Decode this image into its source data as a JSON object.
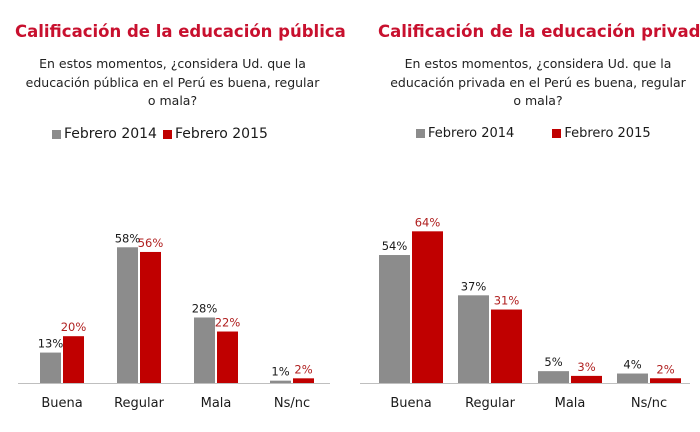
{
  "colors": {
    "gray": "#8c8c8c",
    "red": "#c00000",
    "title_red": "#c8102e",
    "label_red": "#b02020"
  },
  "chart_data": [
    {
      "type": "bar",
      "title": "Calificación de la educación pública",
      "subtitle": "En estos momentos, ¿considera Ud. que la educación pública en el Perú es buena, regular o mala?",
      "categories": [
        "Buena",
        "Regular",
        "Mala",
        "Ns/nc"
      ],
      "series": [
        {
          "name": "Febrero 2014",
          "values": [
            13,
            58,
            28,
            1
          ],
          "labels": [
            "13%",
            "58%",
            "28%",
            "1%"
          ]
        },
        {
          "name": "Febrero 2015",
          "values": [
            20,
            56,
            22,
            2
          ],
          "labels": [
            "20%",
            "56%",
            "22%",
            "2%"
          ]
        }
      ],
      "ylim": [
        0,
        70
      ],
      "legend": "top",
      "grid": false
    },
    {
      "type": "bar",
      "title": "Calificación de la educación privada",
      "subtitle": "En estos momentos, ¿considera Ud. que la educación privada en el Perú es buena, regular o mala?",
      "categories": [
        "Buena",
        "Regular",
        "Mala",
        "Ns/nc"
      ],
      "series": [
        {
          "name": "Febrero 2014",
          "values": [
            54,
            37,
            5,
            4
          ],
          "labels": [
            "54%",
            "37%",
            "5%",
            "4%"
          ]
        },
        {
          "name": "Febrero 2015",
          "values": [
            64,
            31,
            3,
            2
          ],
          "labels": [
            "64%",
            "31%",
            "3%",
            "2%"
          ]
        }
      ],
      "ylim": [
        0,
        70
      ],
      "legend": "top",
      "grid": false
    }
  ]
}
